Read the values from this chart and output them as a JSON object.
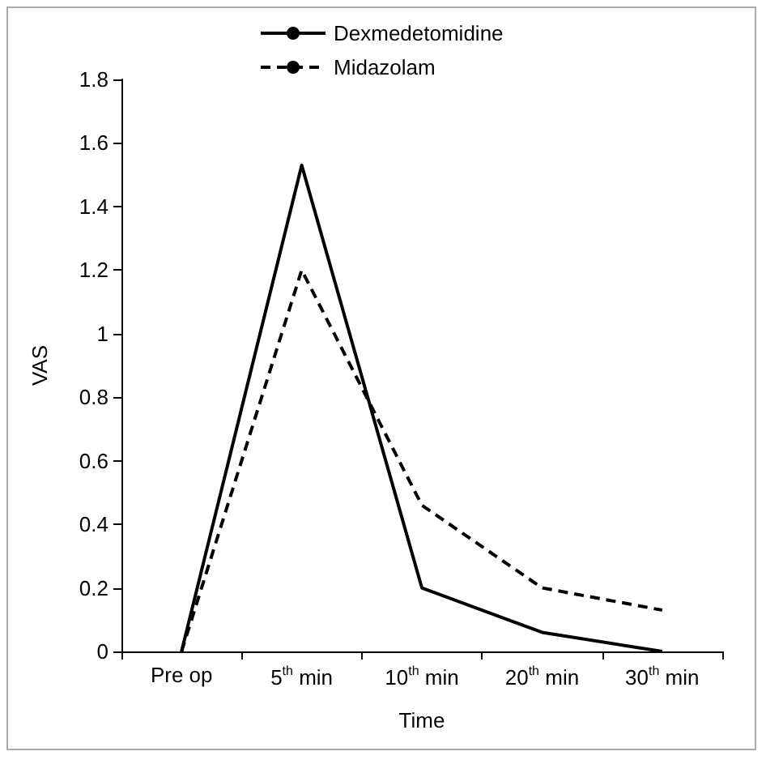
{
  "chart_data": {
    "type": "line",
    "xlabel": "Time",
    "ylabel": "VAS",
    "categories": [
      "Pre op",
      "5$^{th}$ min",
      "10$^{th}$ min",
      "20$^{th}$ min",
      "30$^{th}$ min"
    ],
    "series": [
      {
        "name": "Dexmedetomidine",
        "color": "#000000",
        "line_style": "solid",
        "values": [
          0,
          1.53,
          0.2,
          0.06,
          0
        ]
      },
      {
        "name": "Midazolam",
        "color": "#000000",
        "line_style": "dashed",
        "values": [
          0,
          1.2,
          0.46,
          0.2,
          0.13
        ]
      }
    ],
    "ylim": [
      0,
      1.8
    ],
    "yticks": [
      0,
      0.2,
      0.4,
      0.6,
      0.8,
      1,
      1.2,
      1.4,
      1.6,
      1.8
    ],
    "grid": false,
    "legend": "top",
    "marker": "none"
  }
}
